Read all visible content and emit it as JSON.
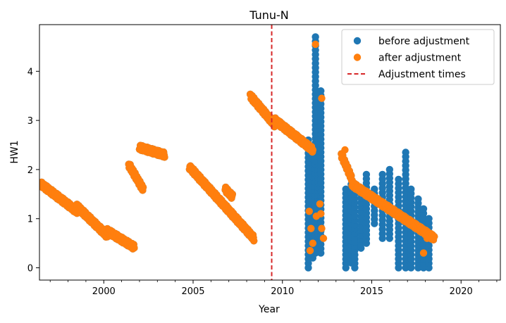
{
  "chart_data": {
    "type": "scatter",
    "title": "Tunu-N",
    "xlabel": "Year",
    "ylabel": "HW1",
    "xlim": [
      1996.4,
      2022.2
    ],
    "ylim": [
      -0.25,
      4.95
    ],
    "xticks": [
      2000,
      2005,
      2010,
      2015,
      2020
    ],
    "yticks": [
      0,
      1,
      2,
      3,
      4
    ],
    "grid": false,
    "legend_position": "top-right",
    "series": [
      {
        "name": "before adjustment",
        "color": "#1f77b4",
        "marker": "circle",
        "segments": [
          {
            "x": [
              1996.5,
              1998.5
            ],
            "y": [
              1.7,
              1.15
            ]
          },
          {
            "x": [
              1998.5,
              2000.2
            ],
            "y": [
              1.25,
              0.65
            ]
          },
          {
            "x": [
              2000.2,
              2001.7
            ],
            "y": [
              0.75,
              0.42
            ]
          },
          {
            "x": [
              2001.4,
              2002.2
            ],
            "y": [
              2.1,
              1.6
            ]
          },
          {
            "x": [
              2002.0,
              2003.4
            ],
            "y": [
              2.45,
              2.3
            ]
          },
          {
            "x": [
              2004.8,
              2008.4
            ],
            "y": [
              2.05,
              0.6
            ]
          },
          {
            "x": [
              2006.8,
              2007.2
            ],
            "y": [
              1.6,
              1.45
            ]
          },
          {
            "x": [
              2008.2,
              2009.6
            ],
            "y": [
              3.5,
              2.9
            ]
          },
          {
            "x": [
              2009.6,
              2011.7
            ],
            "y": [
              3.0,
              2.4
            ]
          },
          {
            "x": [
              2013.3,
              2013.9
            ],
            "y": [
              2.3,
              1.8
            ]
          },
          {
            "x": [
              2013.9,
              2018.5
            ],
            "y": [
              1.7,
              0.6
            ]
          }
        ],
        "columns": [
          {
            "x": 2011.45,
            "y": [
              0.0,
              2.6
            ]
          },
          {
            "x": 2011.7,
            "y": [
              0.2,
              2.4
            ]
          },
          {
            "x": 2011.85,
            "y": [
              0.3,
              4.7
            ]
          },
          {
            "x": 2012.0,
            "y": [
              0.5,
              2.0
            ]
          },
          {
            "x": 2012.15,
            "y": [
              0.3,
              3.6
            ]
          },
          {
            "x": 2013.55,
            "y": [
              0.0,
              1.6
            ]
          },
          {
            "x": 2013.85,
            "y": [
              0.1,
              1.7
            ]
          },
          {
            "x": 2014.05,
            "y": [
              0.0,
              1.5
            ]
          },
          {
            "x": 2014.4,
            "y": [
              0.4,
              1.6
            ]
          },
          {
            "x": 2014.7,
            "y": [
              0.5,
              1.9
            ]
          },
          {
            "x": 2015.15,
            "y": [
              0.9,
              1.6
            ]
          },
          {
            "x": 2015.6,
            "y": [
              0.6,
              1.9
            ]
          },
          {
            "x": 2016.0,
            "y": [
              0.6,
              2.0
            ]
          },
          {
            "x": 2016.5,
            "y": [
              0.0,
              1.8
            ]
          },
          {
            "x": 2016.9,
            "y": [
              0.0,
              2.35
            ]
          },
          {
            "x": 2017.2,
            "y": [
              0.0,
              1.6
            ]
          },
          {
            "x": 2017.6,
            "y": [
              0.0,
              1.4
            ]
          },
          {
            "x": 2017.9,
            "y": [
              0.0,
              1.2
            ]
          },
          {
            "x": 2018.2,
            "y": [
              0.0,
              1.0
            ]
          }
        ]
      },
      {
        "name": "after adjustment",
        "color": "#ff7f0e",
        "marker": "circle",
        "segments": [
          {
            "x": [
              1996.5,
              1998.5
            ],
            "y": [
              1.7,
              1.15
            ]
          },
          {
            "x": [
              1998.5,
              2000.2
            ],
            "y": [
              1.25,
              0.65
            ]
          },
          {
            "x": [
              2000.2,
              2001.7
            ],
            "y": [
              0.75,
              0.42
            ]
          },
          {
            "x": [
              2001.4,
              2002.2
            ],
            "y": [
              2.1,
              1.6
            ]
          },
          {
            "x": [
              2002.0,
              2003.4
            ],
            "y": [
              2.45,
              2.3
            ]
          },
          {
            "x": [
              2004.8,
              2008.4
            ],
            "y": [
              2.05,
              0.6
            ]
          },
          {
            "x": [
              2006.8,
              2007.2
            ],
            "y": [
              1.6,
              1.45
            ]
          },
          {
            "x": [
              2008.2,
              2009.6
            ],
            "y": [
              3.5,
              2.9
            ]
          },
          {
            "x": [
              2009.6,
              2011.7
            ],
            "y": [
              3.0,
              2.4
            ]
          },
          {
            "x": [
              2013.3,
              2013.9
            ],
            "y": [
              2.3,
              1.8
            ]
          },
          {
            "x": [
              2013.9,
              2018.5
            ],
            "y": [
              1.7,
              0.6
            ]
          }
        ],
        "points": [
          {
            "x": 2011.85,
            "y": 4.55
          },
          {
            "x": 2012.2,
            "y": 3.45
          },
          {
            "x": 2011.5,
            "y": 1.15
          },
          {
            "x": 2011.6,
            "y": 0.8
          },
          {
            "x": 2011.7,
            "y": 0.5
          },
          {
            "x": 2011.55,
            "y": 0.35
          },
          {
            "x": 2011.9,
            "y": 1.05
          },
          {
            "x": 2012.1,
            "y": 1.3
          },
          {
            "x": 2012.2,
            "y": 0.8
          },
          {
            "x": 2012.3,
            "y": 0.6
          },
          {
            "x": 2012.15,
            "y": 1.1
          },
          {
            "x": 2013.5,
            "y": 2.4
          },
          {
            "x": 2017.9,
            "y": 0.3
          },
          {
            "x": 2018.1,
            "y": 0.6
          }
        ]
      },
      {
        "name": "Adjustment times",
        "color": "#d62728",
        "line_style": "dashed",
        "vertical_lines": [
          2009.4
        ]
      }
    ]
  }
}
